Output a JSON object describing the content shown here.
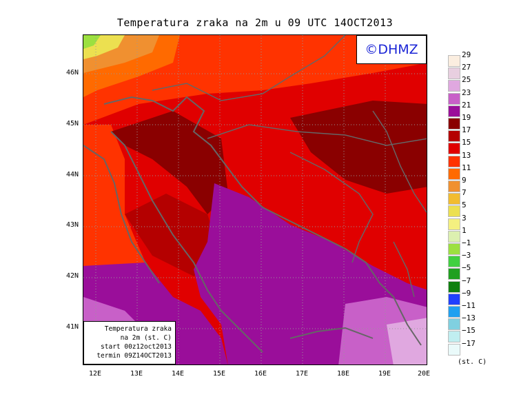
{
  "title": "Temperatura zraka na 2m u 09 UTC 14OCT2013",
  "logo": "©DHMZ",
  "info": {
    "line1": "Temperatura zraka",
    "line2": "na 2m (st. C)",
    "line3": "start 00z12oct2013",
    "line4": "termin 09Z14OCT2013"
  },
  "lat_labels": [
    "46N",
    "45N",
    "44N",
    "43N",
    "42N",
    "41N"
  ],
  "lon_labels": [
    "12E",
    "13E",
    "14E",
    "15E",
    "16E",
    "17E",
    "18E",
    "19E",
    "20E"
  ],
  "legend": {
    "unit": "(st. C)",
    "levels": [
      "29",
      "27",
      "25",
      "23",
      "21",
      "19",
      "17",
      "15",
      "13",
      "11",
      "9",
      "7",
      "5",
      "3",
      "1",
      "−1",
      "−3",
      "−5",
      "−7",
      "−9",
      "−11",
      "−13",
      "−15",
      "−17"
    ],
    "colors": [
      "#fbeee0",
      "#e8cfe0",
      "#e0a8e0",
      "#c860c8",
      "#9a0e9a",
      "#8a0000",
      "#b40000",
      "#e00000",
      "#ff3300",
      "#ff6a00",
      "#f09030",
      "#f2bc30",
      "#ece050",
      "#f4f080",
      "#dcf0b0",
      "#9ce040",
      "#40d040",
      "#20a020",
      "#108010",
      "#2040ff",
      "#20a0f0",
      "#80d0e0",
      "#c0eef0",
      "#eafafa"
    ]
  }
}
